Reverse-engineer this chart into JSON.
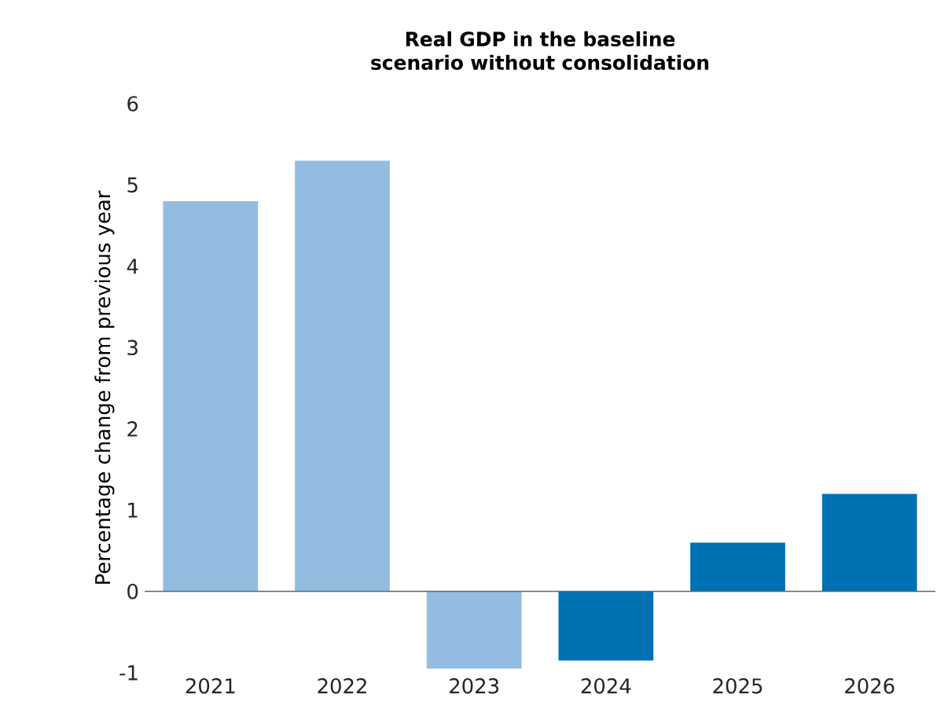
{
  "chart_data": {
    "type": "bar",
    "title": "Real GDP in the baseline scenario without consolidation",
    "ylabel": "Percentage change from previous year",
    "categories": [
      "2021",
      "2022",
      "2023",
      "2024",
      "2025",
      "2026"
    ],
    "values": [
      4.8,
      5.3,
      -0.95,
      -0.85,
      0.6,
      1.2
    ],
    "colors": [
      "#92bde0",
      "#92bde0",
      "#92bde0",
      "#0071b3",
      "#0071b3",
      "#0071b3"
    ],
    "ylim": [
      -1,
      6
    ],
    "yticks": [
      -1,
      0,
      1,
      2,
      3,
      4,
      5,
      6
    ]
  }
}
